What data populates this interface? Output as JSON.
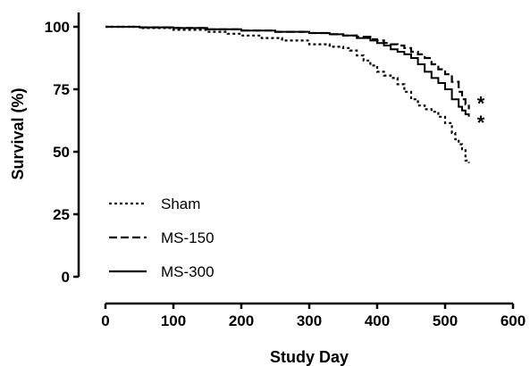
{
  "chart_data": {
    "type": "line",
    "title": "",
    "xlabel": "Study Day",
    "ylabel": "Survival (%)",
    "xlim": [
      0,
      600
    ],
    "ylim": [
      0,
      100
    ],
    "xticks": [
      0,
      100,
      200,
      300,
      400,
      500,
      600
    ],
    "yticks": [
      0,
      25,
      50,
      75,
      100
    ],
    "grid": false,
    "legend_position": "lower-left",
    "series": [
      {
        "name": "Sham",
        "style": "dotted",
        "x": [
          0,
          50,
          100,
          150,
          180,
          200,
          230,
          260,
          300,
          330,
          350,
          360,
          370,
          380,
          390,
          400,
          410,
          420,
          430,
          440,
          450,
          460,
          470,
          480,
          490,
          500,
          510,
          515,
          520,
          525,
          530,
          535
        ],
        "y": [
          100,
          99.5,
          98.8,
          98,
          97.2,
          96.5,
          95.5,
          94.5,
          93,
          92,
          91.5,
          90.5,
          88.5,
          86.5,
          84.5,
          82,
          80.5,
          79.5,
          77,
          74,
          71,
          68.5,
          67,
          66,
          64,
          61.5,
          57.5,
          55,
          53,
          51,
          46.5,
          45.5
        ]
      },
      {
        "name": "MS-150",
        "style": "dashed",
        "x": [
          0,
          50,
          100,
          150,
          200,
          250,
          300,
          330,
          350,
          370,
          390,
          400,
          410,
          420,
          430,
          440,
          450,
          460,
          470,
          480,
          490,
          500,
          510,
          520,
          525,
          530,
          535
        ],
        "y": [
          100,
          99.8,
          99.5,
          99,
          98.5,
          98,
          97.5,
          97,
          96.5,
          96,
          95,
          94.5,
          93.5,
          93,
          92.5,
          91.5,
          90,
          89,
          87.5,
          85,
          83,
          81,
          78,
          74,
          71,
          69,
          67
        ]
      },
      {
        "name": "MS-300",
        "style": "solid",
        "x": [
          0,
          50,
          100,
          150,
          200,
          250,
          300,
          330,
          350,
          370,
          390,
          400,
          410,
          420,
          430,
          440,
          450,
          460,
          470,
          480,
          490,
          500,
          510,
          520,
          525,
          530,
          535
        ],
        "y": [
          100,
          99.8,
          99.5,
          99,
          98.5,
          98,
          97.5,
          97,
          96.5,
          95.5,
          94.5,
          93.5,
          92.5,
          91,
          90,
          89,
          87.5,
          85,
          82,
          79.5,
          77.5,
          75,
          71,
          68,
          66.5,
          65,
          64
        ]
      }
    ],
    "annotations": [
      {
        "text": "*",
        "near_series": "MS-150",
        "x": 555,
        "y": 68
      },
      {
        "text": "*",
        "near_series": "MS-300",
        "x": 555,
        "y": 64
      }
    ]
  }
}
